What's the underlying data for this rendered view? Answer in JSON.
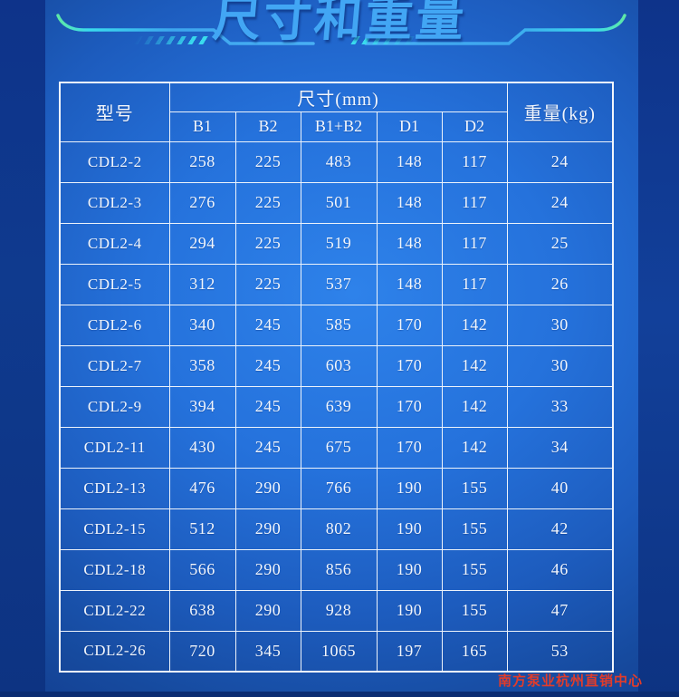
{
  "page": {
    "title": "尺寸和重量",
    "watermark": "南方泵业杭州直销中心"
  },
  "colors": {
    "background_center": "#2e82ea",
    "background_edge": "#113586",
    "side_strip": "#0f3a8e",
    "title_text": "#42a6f4",
    "decor_green": "#5ee8a6",
    "decor_cyan": "#3adcee",
    "decor_blue": "#3da6ee",
    "table_border": "#edf3fb",
    "table_text": "#f2f6fc",
    "watermark_red": "#e23c2a"
  },
  "table": {
    "header": {
      "model": "型号",
      "dimensions_group": "尺寸(mm)",
      "dimension_columns": [
        "B1",
        "B2",
        "B1+B2",
        "D1",
        "D2"
      ],
      "weight": "重量(kg)"
    },
    "rows": [
      [
        "CDL2-2",
        "258",
        "225",
        "483",
        "148",
        "117",
        "24"
      ],
      [
        "CDL2-3",
        "276",
        "225",
        "501",
        "148",
        "117",
        "24"
      ],
      [
        "CDL2-4",
        "294",
        "225",
        "519",
        "148",
        "117",
        "25"
      ],
      [
        "CDL2-5",
        "312",
        "225",
        "537",
        "148",
        "117",
        "26"
      ],
      [
        "CDL2-6",
        "340",
        "245",
        "585",
        "170",
        "142",
        "30"
      ],
      [
        "CDL2-7",
        "358",
        "245",
        "603",
        "170",
        "142",
        "30"
      ],
      [
        "CDL2-9",
        "394",
        "245",
        "639",
        "170",
        "142",
        "33"
      ],
      [
        "CDL2-11",
        "430",
        "245",
        "675",
        "170",
        "142",
        "34"
      ],
      [
        "CDL2-13",
        "476",
        "290",
        "766",
        "190",
        "155",
        "40"
      ],
      [
        "CDL2-15",
        "512",
        "290",
        "802",
        "190",
        "155",
        "42"
      ],
      [
        "CDL2-18",
        "566",
        "290",
        "856",
        "190",
        "155",
        "46"
      ],
      [
        "CDL2-22",
        "638",
        "290",
        "928",
        "190",
        "155",
        "47"
      ],
      [
        "CDL2-26",
        "720",
        "345",
        "1065",
        "197",
        "165",
        "53"
      ]
    ]
  }
}
